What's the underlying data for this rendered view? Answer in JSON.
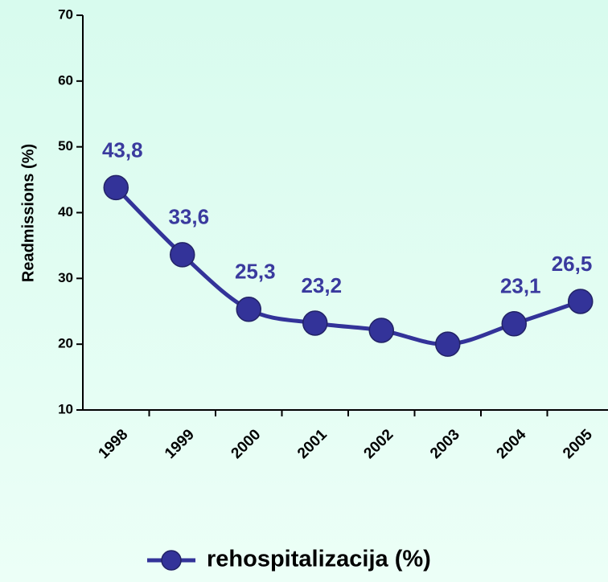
{
  "chart_data": {
    "type": "line",
    "y_label": "Readmissions (%)",
    "categories": [
      "1998",
      "1999",
      "2000",
      "2001",
      "2002",
      "2003",
      "2004",
      "2005"
    ],
    "series": [
      {
        "name": "rehospitalizacija (%)",
        "color": "#333399",
        "values": [
          43.8,
          33.6,
          25.3,
          23.2,
          22.1,
          20.0,
          23.1,
          26.5
        ],
        "value_labels": [
          "43,8",
          "33,6",
          "25,3",
          "23,2",
          null,
          null,
          "23,1",
          "26,5"
        ]
      }
    ],
    "ylim": [
      10,
      70
    ],
    "yticks": [
      10,
      20,
      30,
      40,
      50,
      60,
      70
    ],
    "legend": "bottom"
  }
}
